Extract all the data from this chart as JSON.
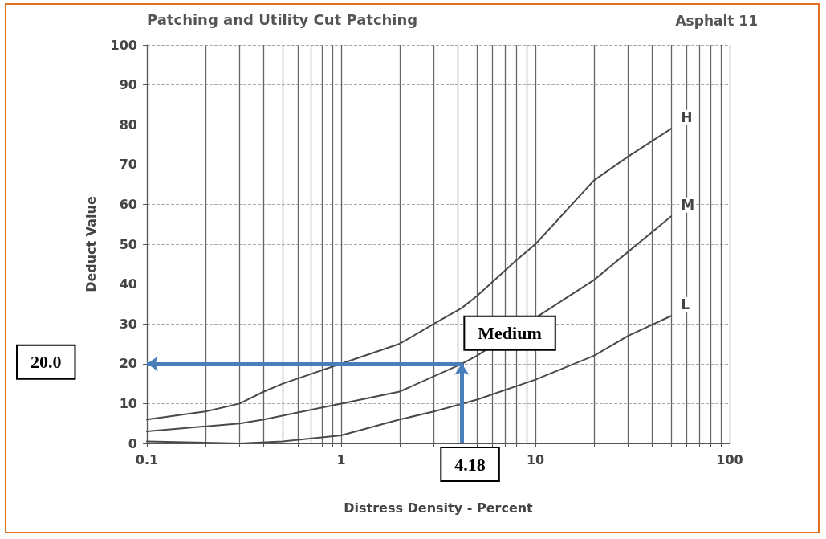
{
  "chart_data": {
    "type": "line",
    "title": "Patching and Utility Cut Patching",
    "subtitle": "Asphalt 11",
    "xlabel": "Distress Density - Percent",
    "ylabel": "Deduct Value",
    "log": "x",
    "grid": true,
    "marker": "none",
    "line_style": "solid",
    "legend": false,
    "xlim": [
      0.1,
      100
    ],
    "xticks": [
      0.1,
      {
        "value": 0.2,
        "label": null
      },
      {
        "value": 0.3,
        "label": null
      },
      {
        "value": 0.4,
        "label": null
      },
      {
        "value": 0.5,
        "label": null
      },
      {
        "value": 0.6,
        "label": null
      },
      {
        "value": 0.7,
        "label": null
      },
      {
        "value": 0.8,
        "label": null
      },
      {
        "value": 0.9,
        "label": null
      },
      1,
      {
        "value": 2,
        "label": null
      },
      {
        "value": 3,
        "label": null
      },
      {
        "value": 4,
        "label": null
      },
      {
        "value": 5,
        "label": null
      },
      {
        "value": 6,
        "label": null
      },
      {
        "value": 7,
        "label": null
      },
      {
        "value": 8,
        "label": null
      },
      {
        "value": 9,
        "label": null
      },
      10,
      {
        "value": 20,
        "label": null
      },
      {
        "value": 30,
        "label": null
      },
      {
        "value": 40,
        "label": null
      },
      {
        "value": 50,
        "label": null
      },
      {
        "value": 60,
        "label": null
      },
      {
        "value": 70,
        "label": null
      },
      {
        "value": 80,
        "label": null
      },
      {
        "value": 90,
        "label": null
      },
      100
    ],
    "ylim": [
      0,
      100
    ],
    "yticks": [
      0,
      10,
      20,
      30,
      40,
      50,
      60,
      70,
      80,
      90,
      100
    ],
    "series": [
      {
        "name": "H",
        "color": "#4a4a4a",
        "x": [
          0.1,
          0.2,
          0.3,
          0.4,
          0.5,
          1,
          2,
          3,
          4.18,
          5,
          8,
          10,
          20,
          30,
          50
        ],
        "values": [
          6,
          8,
          10,
          13,
          15,
          20,
          25,
          30,
          34,
          37,
          46,
          50,
          66,
          72,
          79
        ]
      },
      {
        "name": "M",
        "color": "#4a4a4a",
        "x": [
          0.1,
          0.3,
          0.4,
          1,
          2,
          4.18,
          5,
          20,
          50
        ],
        "values": [
          3,
          5,
          6,
          10,
          13,
          20,
          22,
          41,
          57
        ]
      },
      {
        "name": "L",
        "color": "#4a4a4a",
        "x": [
          0.1,
          0.3,
          0.5,
          1,
          2,
          3,
          5,
          10,
          20,
          30,
          50
        ],
        "values": [
          0.5,
          0,
          0.5,
          2,
          6,
          8,
          11,
          16,
          22,
          27,
          32
        ]
      }
    ],
    "annotations": [
      "20.0",
      {
        "text": "Medium",
        "x": 4.18,
        "y": 20
      },
      {
        "text": "4.18",
        "x": 4.18,
        "y": 20
      }
    ]
  }
}
